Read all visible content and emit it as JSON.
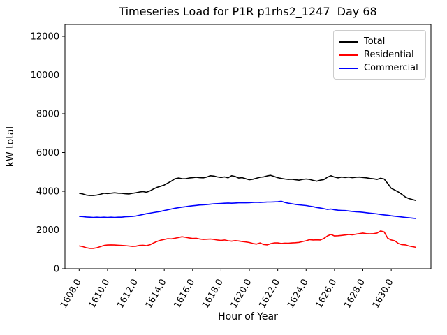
{
  "chart_data": {
    "type": "line",
    "title": "Timeseries Load for P1R p1rhs2_1247  Day 68",
    "xlabel": "Hour of Year",
    "ylabel": "kW total",
    "grid": false,
    "legend_position": "upper right",
    "xlim": [
      1607.0,
      1632.8
    ],
    "ylim": [
      0,
      12612
    ],
    "x_ticks": [
      1608,
      1610,
      1612,
      1614,
      1616,
      1618,
      1620,
      1622,
      1624,
      1626,
      1628,
      1630
    ],
    "x_tick_labels": [
      "1608.0",
      "1610.0",
      "1612.0",
      "1614.0",
      "1616.0",
      "1618.0",
      "1620.0",
      "1622.0",
      "1624.0",
      "1626.0",
      "1628.0",
      "1630.0"
    ],
    "x_tick_rotation_deg": 60,
    "y_ticks": [
      0,
      2000,
      4000,
      6000,
      8000,
      10000,
      12000
    ],
    "y_tick_labels": [
      "0",
      "2000",
      "4000",
      "6000",
      "8000",
      "10000",
      "12000"
    ],
    "x_start": 1608.0,
    "x_step": 0.25,
    "x_end": 1631.75,
    "n_points": 96,
    "series": [
      {
        "name": "Total",
        "color": "#000000",
        "values": [
          3900,
          3860,
          3800,
          3780,
          3780,
          3800,
          3840,
          3900,
          3880,
          3900,
          3920,
          3900,
          3890,
          3870,
          3860,
          3890,
          3920,
          3960,
          3980,
          3950,
          4020,
          4120,
          4200,
          4260,
          4320,
          4420,
          4520,
          4640,
          4680,
          4650,
          4640,
          4680,
          4700,
          4720,
          4700,
          4690,
          4730,
          4800,
          4780,
          4740,
          4710,
          4740,
          4690,
          4800,
          4760,
          4680,
          4700,
          4640,
          4590,
          4620,
          4670,
          4720,
          4740,
          4790,
          4820,
          4760,
          4700,
          4660,
          4630,
          4610,
          4620,
          4590,
          4570,
          4610,
          4630,
          4610,
          4560,
          4520,
          4570,
          4600,
          4720,
          4800,
          4730,
          4690,
          4730,
          4710,
          4730,
          4700,
          4720,
          4730,
          4710,
          4690,
          4660,
          4640,
          4610,
          4670,
          4630,
          4400,
          4150,
          4060,
          3960,
          3840,
          3700,
          3620,
          3570,
          3520
        ]
      },
      {
        "name": "Residential",
        "color": "#ff0000",
        "values": [
          1180,
          1140,
          1080,
          1050,
          1050,
          1080,
          1140,
          1200,
          1220,
          1230,
          1220,
          1210,
          1200,
          1190,
          1170,
          1150,
          1160,
          1200,
          1210,
          1190,
          1240,
          1330,
          1410,
          1470,
          1510,
          1550,
          1540,
          1570,
          1610,
          1650,
          1620,
          1590,
          1560,
          1570,
          1530,
          1510,
          1520,
          1530,
          1510,
          1480,
          1460,
          1480,
          1440,
          1420,
          1450,
          1430,
          1400,
          1380,
          1350,
          1300,
          1270,
          1330,
          1250,
          1230,
          1290,
          1330,
          1330,
          1300,
          1320,
          1310,
          1330,
          1340,
          1360,
          1400,
          1440,
          1500,
          1480,
          1490,
          1480,
          1560,
          1690,
          1770,
          1690,
          1700,
          1720,
          1740,
          1770,
          1750,
          1780,
          1810,
          1840,
          1810,
          1800,
          1810,
          1840,
          1950,
          1900,
          1570,
          1480,
          1440,
          1300,
          1240,
          1230,
          1170,
          1140,
          1100
        ]
      },
      {
        "name": "Commercial",
        "color": "#0000ff",
        "values": [
          2700,
          2690,
          2670,
          2660,
          2650,
          2660,
          2650,
          2660,
          2650,
          2660,
          2650,
          2660,
          2660,
          2680,
          2690,
          2700,
          2720,
          2760,
          2800,
          2840,
          2870,
          2900,
          2930,
          2960,
          3000,
          3040,
          3080,
          3120,
          3150,
          3180,
          3200,
          3230,
          3250,
          3270,
          3290,
          3300,
          3310,
          3330,
          3350,
          3360,
          3370,
          3380,
          3390,
          3380,
          3390,
          3400,
          3410,
          3400,
          3410,
          3420,
          3430,
          3420,
          3430,
          3440,
          3440,
          3450,
          3460,
          3480,
          3420,
          3380,
          3350,
          3320,
          3300,
          3280,
          3260,
          3230,
          3200,
          3160,
          3130,
          3100,
          3060,
          3080,
          3040,
          3020,
          3010,
          3000,
          2980,
          2960,
          2940,
          2930,
          2910,
          2890,
          2870,
          2850,
          2830,
          2800,
          2780,
          2760,
          2730,
          2710,
          2690,
          2670,
          2650,
          2630,
          2610,
          2590
        ]
      }
    ]
  }
}
